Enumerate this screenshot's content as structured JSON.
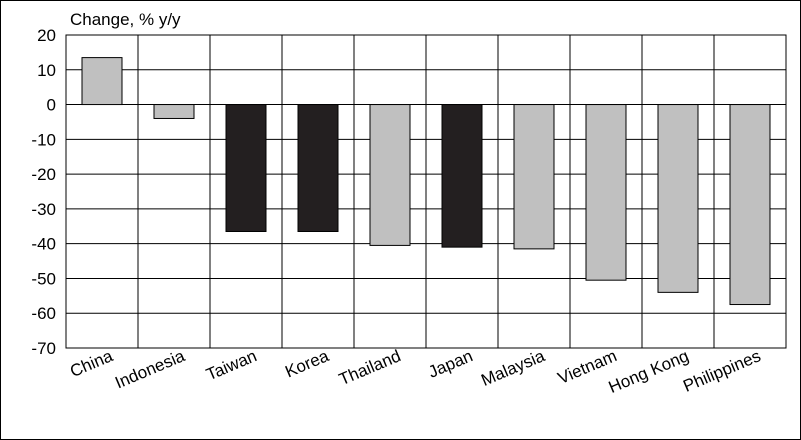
{
  "chart_data": {
    "type": "bar",
    "ylabel": "Change, % y/y",
    "categories": [
      "China",
      "Indonesia",
      "Taiwan",
      "Korea",
      "Thailand",
      "Japan",
      "Malaysia",
      "Vietnam",
      "Hong Kong",
      "Philippines"
    ],
    "values": [
      13.5,
      -4,
      -36.5,
      -36.5,
      -40.5,
      -41,
      -41.5,
      -50.5,
      -54,
      -57.5
    ],
    "bar_colors": [
      "#c0c0c0",
      "#c0c0c0",
      "#231f20",
      "#231f20",
      "#c0c0c0",
      "#231f20",
      "#c0c0c0",
      "#c0c0c0",
      "#c0c0c0",
      "#c0c0c0"
    ],
    "ylim": [
      -70,
      20
    ],
    "yticks": [
      20,
      10,
      0,
      -10,
      -20,
      -30,
      -40,
      -50,
      -60,
      -70
    ],
    "grid": true
  }
}
